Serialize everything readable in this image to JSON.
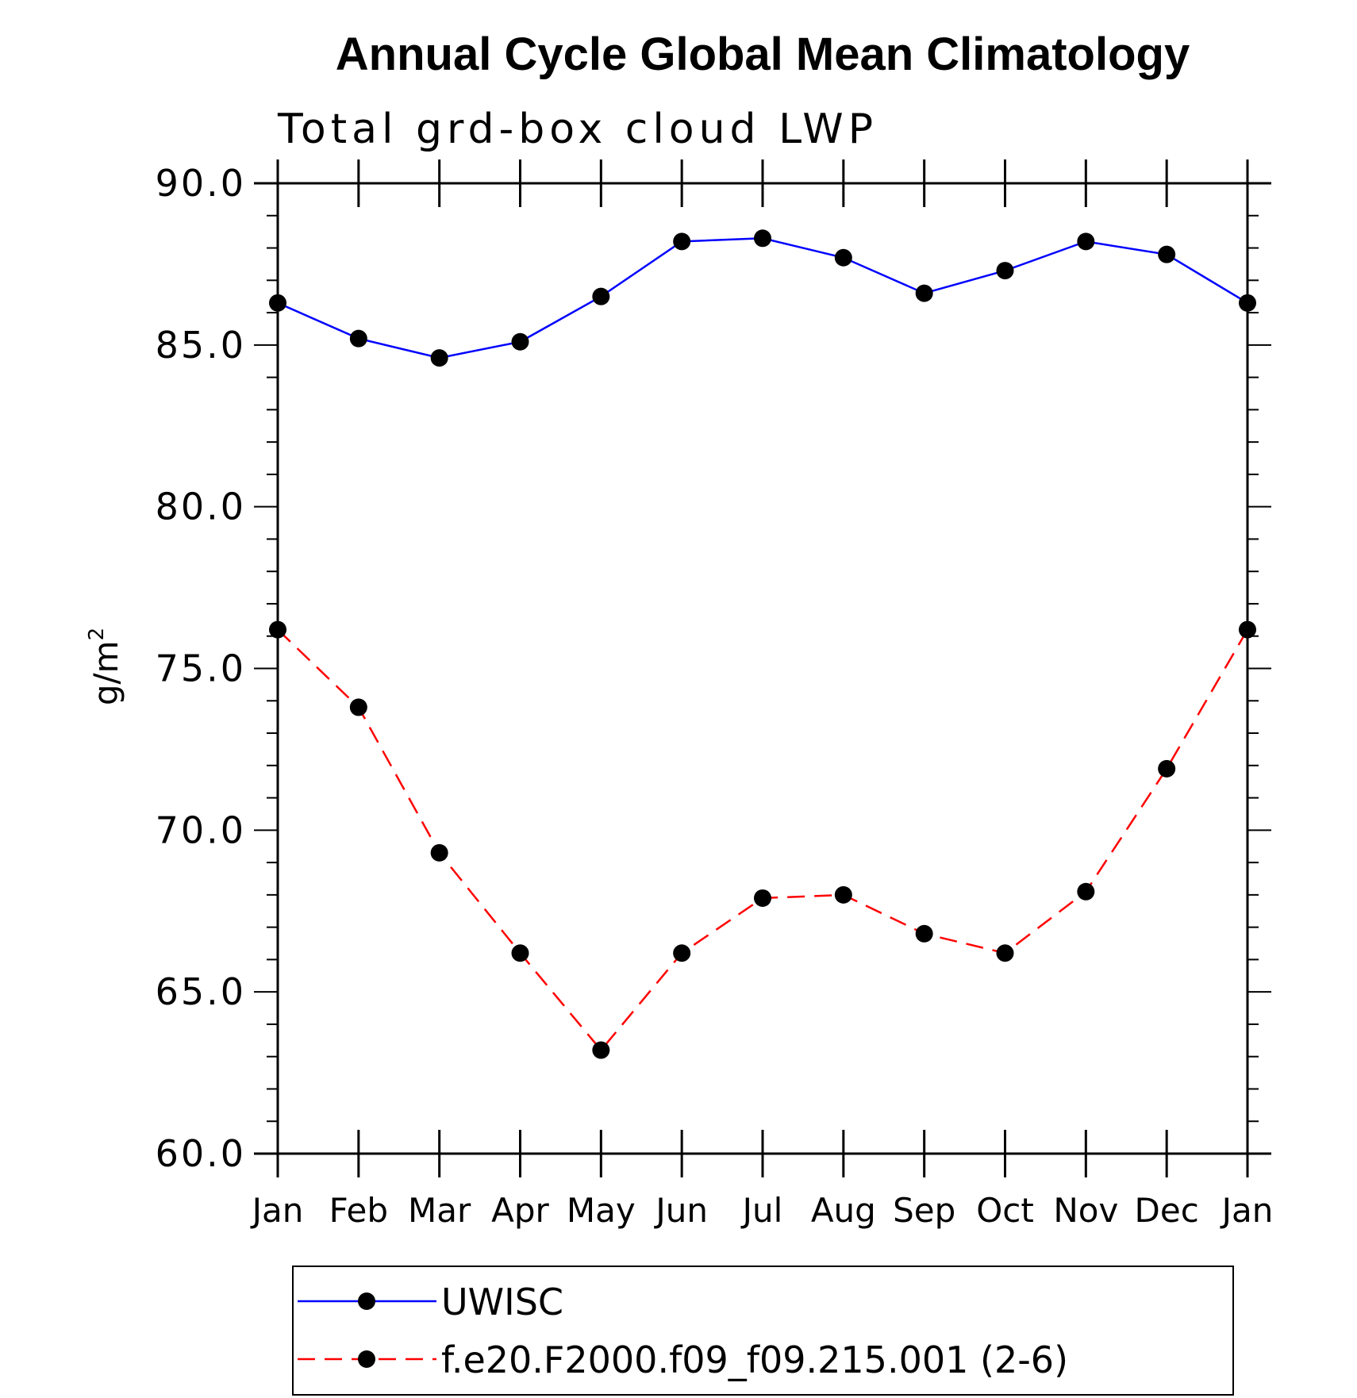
{
  "chart_data": {
    "type": "line",
    "title": "Annual Cycle Global Mean Climatology",
    "subtitle": "Total grd-box cloud LWP",
    "ylabel": "g/m",
    "ylabel_superscript": "2",
    "xlabel": "",
    "categories": [
      "Jan",
      "Feb",
      "Mar",
      "Apr",
      "May",
      "Jun",
      "Jul",
      "Aug",
      "Sep",
      "Oct",
      "Nov",
      "Dec",
      "Jan"
    ],
    "ylim": [
      60.0,
      90.0
    ],
    "yticks": [
      "60.0",
      "65.0",
      "70.0",
      "75.0",
      "80.0",
      "85.0",
      "90.0"
    ],
    "legend_position": "bottom",
    "series": [
      {
        "name": "UWISC",
        "color": "#0000ff",
        "line_style": "solid",
        "values": [
          86.3,
          85.2,
          84.6,
          85.1,
          86.5,
          88.2,
          88.3,
          87.7,
          86.6,
          87.3,
          88.2,
          87.8,
          86.3
        ]
      },
      {
        "name": "f.e20.F2000.f09_f09.215.001 (2-6)",
        "color": "#ff0000",
        "line_style": "dashed",
        "values": [
          76.2,
          73.8,
          69.3,
          66.2,
          63.2,
          66.2,
          67.9,
          68.0,
          66.8,
          66.2,
          68.1,
          71.9,
          76.2
        ]
      }
    ]
  }
}
